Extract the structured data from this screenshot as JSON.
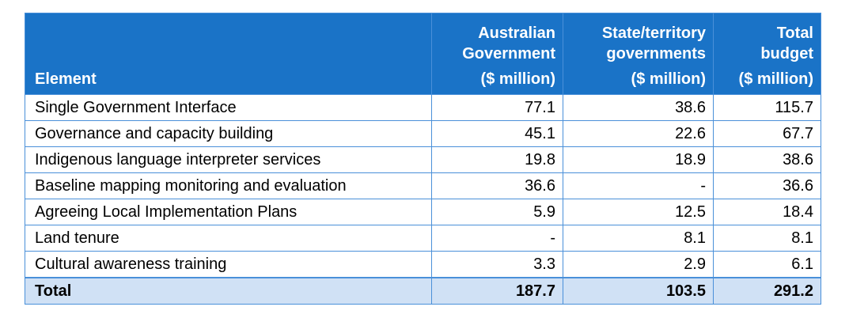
{
  "table": {
    "headers": {
      "element": "Element",
      "australian": [
        "Australian",
        "Government"
      ],
      "australian_unit": "($ million)",
      "state": [
        "State/territory",
        "governments"
      ],
      "state_unit": "($ million)",
      "total": [
        "Total",
        "budget"
      ],
      "total_unit": "($ million)"
    },
    "rows": [
      {
        "element": "Single Government Interface",
        "australian": "77.1",
        "state": "38.6",
        "total": "115.7"
      },
      {
        "element": "Governance and capacity building",
        "australian": "45.1",
        "state": "22.6",
        "total": "67.7"
      },
      {
        "element": "Indigenous language interpreter services",
        "australian": "19.8",
        "state": "18.9",
        "total": "38.6"
      },
      {
        "element": "Baseline mapping monitoring and evaluation",
        "australian": "36.6",
        "state": "-",
        "total": "36.6"
      },
      {
        "element": "Agreeing Local Implementation Plans",
        "australian": "5.9",
        "state": "12.5",
        "total": "18.4"
      },
      {
        "element": "Land tenure",
        "australian": "-",
        "state": "8.1",
        "total": "8.1"
      },
      {
        "element": "Cultural awareness training",
        "australian": "3.3",
        "state": "2.9",
        "total": "6.1"
      }
    ],
    "total_row": {
      "element": "Total",
      "australian": "187.7",
      "state": "103.5",
      "total": "291.2"
    }
  },
  "colors": {
    "header_bg": "#1a73c7",
    "border": "#4a90d9",
    "total_row_bg": "#d0e1f5"
  }
}
